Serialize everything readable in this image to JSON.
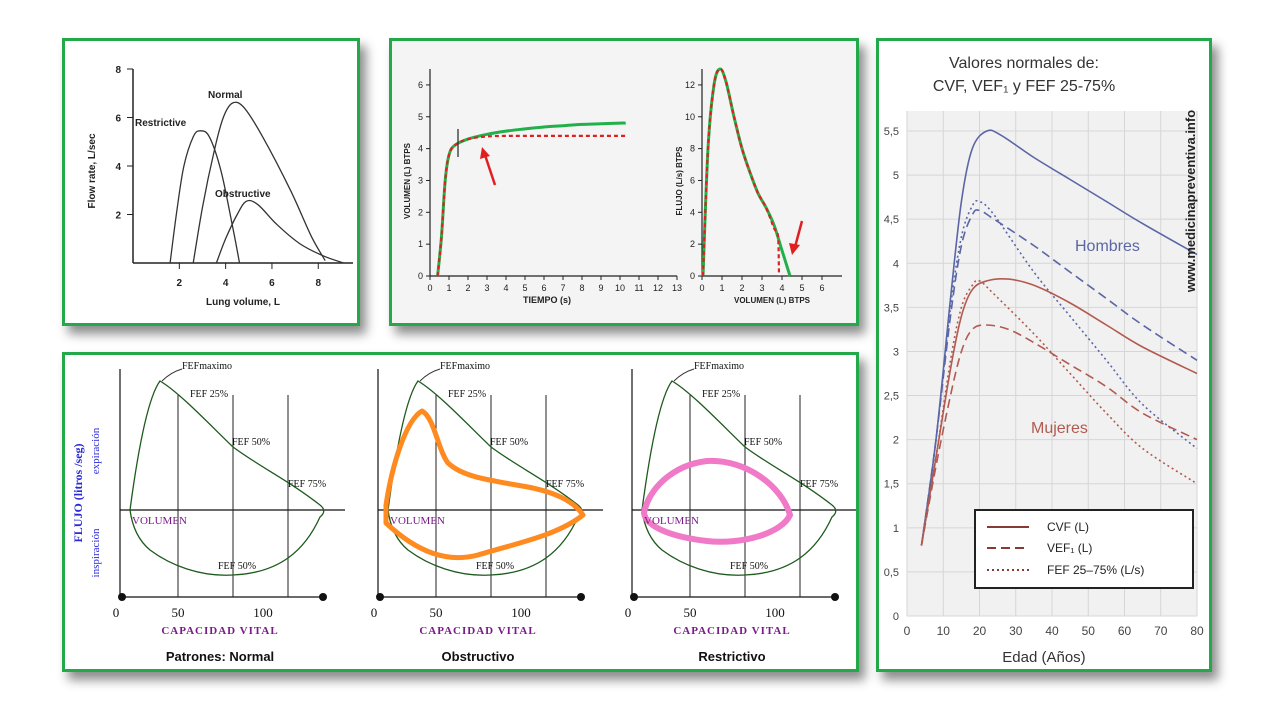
{
  "colors": {
    "frame": "#23a84a",
    "green_curve": "#22b04a",
    "red_dashed": "#e02020",
    "orange_loop": "#ff8a1f",
    "pink_loop": "#f07ac8",
    "men": "#5a66a6",
    "women": "#b25a50",
    "blue_label": "#2a2ad6",
    "purple_label": "#7a1a8a"
  },
  "chart_data": [
    {
      "id": "flow_volume_patterns",
      "type": "line",
      "xlabel": "Lung volume, L",
      "ylabel": "Flow rate, L/sec",
      "xlim": [
        0,
        9.5
      ],
      "ylim": [
        0,
        8
      ],
      "x_ticks": [
        2,
        4,
        6,
        8
      ],
      "y_ticks": [
        2,
        4,
        6,
        8
      ],
      "series": [
        {
          "name": "Restrictive",
          "points": [
            [
              1.6,
              0
            ],
            [
              1.9,
              2.2
            ],
            [
              2.2,
              4.0
            ],
            [
              2.6,
              5.2
            ],
            [
              2.9,
              5.45
            ],
            [
              3.3,
              5.2
            ],
            [
              3.8,
              3.8
            ],
            [
              4.3,
              1.5
            ],
            [
              4.6,
              0
            ]
          ]
        },
        {
          "name": "Normal",
          "points": [
            [
              2.6,
              0
            ],
            [
              3.0,
              2.3
            ],
            [
              3.5,
              4.6
            ],
            [
              3.9,
              6.0
            ],
            [
              4.3,
              6.6
            ],
            [
              4.8,
              6.4
            ],
            [
              5.6,
              5.2
            ],
            [
              6.8,
              3.0
            ],
            [
              7.7,
              1.1
            ],
            [
              8.3,
              0.1
            ]
          ]
        },
        {
          "name": "Obstructive",
          "points": [
            [
              3.6,
              0
            ],
            [
              4.0,
              1.0
            ],
            [
              4.5,
              2.0
            ],
            [
              4.9,
              2.55
            ],
            [
              5.4,
              2.4
            ],
            [
              6.2,
              1.6
            ],
            [
              7.2,
              0.8
            ],
            [
              8.2,
              0.3
            ],
            [
              9.1,
              0
            ]
          ]
        }
      ]
    },
    {
      "id": "volume_time",
      "type": "line",
      "xlabel": "TIEMPO (s)",
      "ylabel": "VOLUMEN (L) BTPS",
      "xlim": [
        0,
        13
      ],
      "ylim": [
        0,
        6.5
      ],
      "x_ticks": [
        0,
        1,
        2,
        3,
        4,
        5,
        6,
        7,
        8,
        9,
        10,
        11,
        12,
        13
      ],
      "y_ticks": [
        0,
        1,
        2,
        3,
        4,
        5,
        6
      ],
      "series": [
        {
          "style": "solid-green",
          "points": [
            [
              0.4,
              0
            ],
            [
              0.6,
              1.2
            ],
            [
              0.8,
              3.0
            ],
            [
              1.0,
              3.8
            ],
            [
              1.3,
              4.1
            ],
            [
              2,
              4.3
            ],
            [
              3,
              4.45
            ],
            [
              4,
              4.55
            ],
            [
              5,
              4.62
            ],
            [
              6,
              4.68
            ],
            [
              7,
              4.72
            ],
            [
              8,
              4.76
            ],
            [
              9,
              4.78
            ],
            [
              10,
              4.8
            ],
            [
              10.3,
              4.8
            ]
          ]
        },
        {
          "style": "dashed-red",
          "points": [
            [
              0.4,
              0
            ],
            [
              0.6,
              1.2
            ],
            [
              0.8,
              3.0
            ],
            [
              1.0,
              3.8
            ],
            [
              1.3,
              4.1
            ],
            [
              2,
              4.3
            ],
            [
              3,
              4.38
            ],
            [
              4,
              4.4
            ],
            [
              6,
              4.4
            ],
            [
              8,
              4.4
            ],
            [
              10.3,
              4.4
            ]
          ]
        }
      ]
    },
    {
      "id": "flow_volume_btps",
      "type": "line",
      "xlabel": "VOLUMEN (L) BTPS",
      "ylabel": "FLUJO (L/s) BTPS",
      "xlim": [
        0,
        7
      ],
      "ylim": [
        0,
        13
      ],
      "x_ticks": [
        0,
        1,
        2,
        3,
        4,
        5,
        6
      ],
      "y_ticks": [
        0,
        2,
        4,
        6,
        8,
        10,
        12
      ],
      "series": [
        {
          "style": "solid-green",
          "points": [
            [
              0.05,
              0
            ],
            [
              0.3,
              8
            ],
            [
              0.6,
              12
            ],
            [
              0.9,
              13
            ],
            [
              1.2,
              12.2
            ],
            [
              1.6,
              10
            ],
            [
              2.0,
              8
            ],
            [
              2.4,
              6.5
            ],
            [
              2.8,
              5.2
            ],
            [
              3.2,
              4.3
            ],
            [
              3.6,
              3.2
            ],
            [
              4.0,
              1.6
            ],
            [
              4.4,
              0
            ]
          ]
        },
        {
          "style": "dashed-red",
          "points": [
            [
              0.05,
              0
            ],
            [
              0.3,
              8
            ],
            [
              0.6,
              12
            ],
            [
              0.9,
              13
            ],
            [
              1.2,
              12.2
            ],
            [
              1.6,
              10
            ],
            [
              2.0,
              8
            ],
            [
              2.4,
              6.5
            ],
            [
              2.8,
              5.2
            ],
            [
              3.2,
              4.3
            ],
            [
              3.6,
              3.0
            ],
            [
              3.8,
              2.5
            ],
            [
              3.85,
              0
            ]
          ]
        }
      ]
    },
    {
      "id": "normal_values_age",
      "type": "line",
      "title": "Valores normales de:",
      "subtitle": "CVF, VEF₁ y FEF 25-75%",
      "xlabel": "Edad (Años)",
      "xlim": [
        0,
        80
      ],
      "ylim": [
        0,
        5.5
      ],
      "x_ticks": [
        0,
        10,
        20,
        30,
        40,
        50,
        60,
        70,
        80
      ],
      "y_ticks": [
        0,
        0.5,
        1,
        1.5,
        2,
        2.5,
        3,
        3.5,
        4,
        4.5,
        5,
        5.5
      ],
      "y_tick_labels": [
        "0",
        "0,5",
        "1",
        "1,5",
        "2",
        "2,5",
        "3",
        "3,5",
        "4",
        "4,5",
        "5",
        "5,5"
      ],
      "group_labels": [
        "Hombres",
        "Mujeres"
      ],
      "watermark": "www.medicinapreventiva.info",
      "legend": [
        "CVF (L)",
        "VEF₁ (L)",
        "FEF 25–75% (L/s)"
      ],
      "legend_position": "bottom-right",
      "grid": true,
      "series": [
        {
          "group": "men",
          "style": "solid",
          "points": [
            [
              4,
              0.8
            ],
            [
              8,
              2.0
            ],
            [
              12,
              3.6
            ],
            [
              15,
              4.7
            ],
            [
              18,
              5.3
            ],
            [
              22,
              5.5
            ],
            [
              26,
              5.45
            ],
            [
              35,
              5.2
            ],
            [
              45,
              4.95
            ],
            [
              55,
              4.7
            ],
            [
              65,
              4.45
            ],
            [
              80,
              4.1
            ]
          ]
        },
        {
          "group": "men",
          "style": "dashed",
          "points": [
            [
              4,
              0.8
            ],
            [
              8,
              2.0
            ],
            [
              12,
              3.4
            ],
            [
              15,
              4.2
            ],
            [
              18,
              4.55
            ],
            [
              20,
              4.6
            ],
            [
              24,
              4.5
            ],
            [
              35,
              4.2
            ],
            [
              45,
              3.9
            ],
            [
              55,
              3.6
            ],
            [
              65,
              3.3
            ],
            [
              80,
              2.9
            ]
          ]
        },
        {
          "group": "men",
          "style": "dotted",
          "points": [
            [
              4,
              0.8
            ],
            [
              8,
              2.0
            ],
            [
              12,
              3.5
            ],
            [
              15,
              4.3
            ],
            [
              18,
              4.65
            ],
            [
              20,
              4.7
            ],
            [
              24,
              4.55
            ],
            [
              35,
              3.9
            ],
            [
              45,
              3.4
            ],
            [
              55,
              2.9
            ],
            [
              65,
              2.4
            ],
            [
              80,
              1.9
            ]
          ]
        },
        {
          "group": "women",
          "style": "solid",
          "points": [
            [
              4,
              0.8
            ],
            [
              8,
              1.8
            ],
            [
              12,
              2.8
            ],
            [
              15,
              3.4
            ],
            [
              18,
              3.7
            ],
            [
              22,
              3.8
            ],
            [
              28,
              3.82
            ],
            [
              35,
              3.75
            ],
            [
              45,
              3.55
            ],
            [
              55,
              3.3
            ],
            [
              65,
              3.05
            ],
            [
              80,
              2.75
            ]
          ]
        },
        {
          "group": "women",
          "style": "dashed",
          "points": [
            [
              4,
              0.8
            ],
            [
              8,
              1.7
            ],
            [
              12,
              2.5
            ],
            [
              15,
              3.0
            ],
            [
              18,
              3.25
            ],
            [
              22,
              3.3
            ],
            [
              28,
              3.25
            ],
            [
              35,
              3.1
            ],
            [
              45,
              2.85
            ],
            [
              55,
              2.6
            ],
            [
              65,
              2.3
            ],
            [
              80,
              2.0
            ]
          ]
        },
        {
          "group": "women",
          "style": "dotted",
          "points": [
            [
              4,
              0.8
            ],
            [
              8,
              1.8
            ],
            [
              12,
              2.9
            ],
            [
              15,
              3.5
            ],
            [
              18,
              3.75
            ],
            [
              20,
              3.8
            ],
            [
              24,
              3.65
            ],
            [
              35,
              3.2
            ],
            [
              45,
              2.75
            ],
            [
              55,
              2.3
            ],
            [
              65,
              1.9
            ],
            [
              80,
              1.5
            ]
          ]
        }
      ]
    },
    {
      "id": "patterns_loops",
      "type": "line",
      "ylabel": "FLUJO (litros /seg)",
      "ylabel_top": "expiración",
      "ylabel_bottom": "inspiración",
      "xlabel": "CAPACIDAD VITAL",
      "x_ticks": [
        0,
        50,
        100
      ],
      "patterns": [
        {
          "label": "Patrones:  Normal",
          "marks": [
            "FEFmaximo",
            "FEF 25%",
            "FEF 50%",
            "FEF 75%",
            "VOLUMEN",
            "FEF 50%"
          ]
        },
        {
          "label": "Obstructivo",
          "marks": [
            "FEFmaximo",
            "FEF 25%",
            "FEF 50%",
            "FEF 75%",
            "VOLUMEN",
            "FEF 50%"
          ]
        },
        {
          "label": "Restrictivo",
          "marks": [
            "FEFmaximo",
            "FEF 25%",
            "FEF 50%",
            "FEF 75%",
            "VOLUMEN",
            "FEF 50%"
          ]
        }
      ]
    }
  ]
}
